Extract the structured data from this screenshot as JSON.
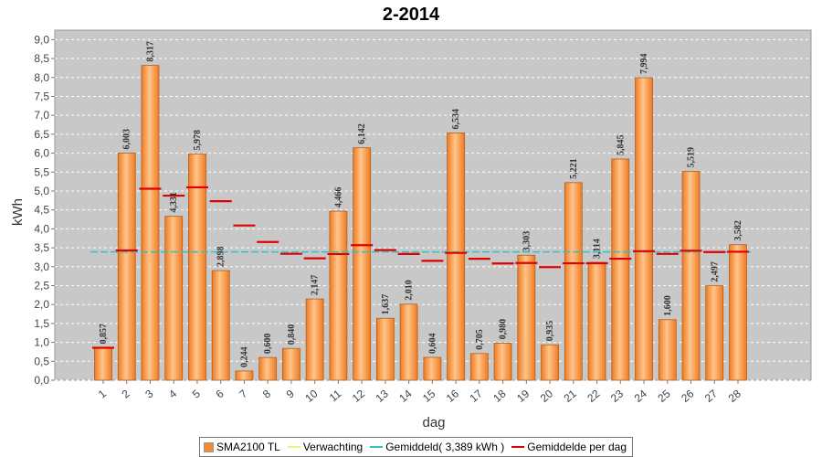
{
  "chart_data": {
    "type": "bar",
    "title": "2-2014",
    "xlabel": "dag",
    "ylabel": "kWh",
    "ylim": [
      0,
      9.25
    ],
    "yticks": [
      "0,0",
      "0,5",
      "1,0",
      "1,5",
      "2,0",
      "2,5",
      "3,0",
      "3,5",
      "4,0",
      "4,5",
      "5,0",
      "5,5",
      "6,0",
      "6,5",
      "7,0",
      "7,5",
      "8,0",
      "8,5",
      "9,0"
    ],
    "categories": [
      "1",
      "2",
      "3",
      "4",
      "5",
      "6",
      "7",
      "8",
      "9",
      "10",
      "11",
      "12",
      "13",
      "14",
      "15",
      "16",
      "17",
      "18",
      "19",
      "20",
      "21",
      "22",
      "23",
      "24",
      "25",
      "26",
      "27",
      "28"
    ],
    "series": [
      {
        "name": "SMA2100 TL",
        "values": [
          0.857,
          6.003,
          8.317,
          4.331,
          5.978,
          2.898,
          0.244,
          0.6,
          0.84,
          2.147,
          4.466,
          6.142,
          1.637,
          2.01,
          0.604,
          6.534,
          0.705,
          0.98,
          3.303,
          0.935,
          5.221,
          3.114,
          5.845,
          7.994,
          1.6,
          5.519,
          2.497,
          3.582
        ],
        "labels": [
          "0,857",
          "6,003",
          "8,317",
          "4,331",
          "5,978",
          "2,898",
          "0,244",
          "0,600",
          "0,840",
          "2,147",
          "4,466",
          "6,142",
          "1,637",
          "2,010",
          "0,604",
          "6,534",
          "0,705",
          "0,980",
          "3,303",
          "0,935",
          "5,221",
          "3,114",
          "5,845",
          "7,994",
          "1,600",
          "5,519",
          "2,497",
          "3,582"
        ],
        "color": "#ff9f4a"
      },
      {
        "name": "Gemiddelde per dag",
        "values": [
          0.857,
          3.43,
          5.059,
          4.877,
          5.097,
          4.73,
          4.089,
          3.653,
          3.341,
          3.222,
          3.335,
          3.569,
          3.438,
          3.336,
          3.154,
          3.365,
          3.209,
          3.086,
          3.097,
          2.989,
          3.09,
          3.091,
          3.211,
          3.41,
          3.338,
          3.422,
          3.388,
          3.395
        ],
        "color": "#e00000"
      }
    ],
    "reference_lines": [
      {
        "name": "Gemiddeld( 3,389 kWh )",
        "value": 3.389,
        "color": "#30c0c8"
      }
    ],
    "legend_position": "bottom",
    "grid": true
  },
  "legend": {
    "items": [
      {
        "label": "SMA2100 TL",
        "color": "#f28a30",
        "kind": "box"
      },
      {
        "label": "Verwachting",
        "color": "#f5f07a",
        "kind": "line"
      },
      {
        "label": "Gemiddeld( 3,389 kWh )",
        "color": "#30c0c8",
        "kind": "line"
      },
      {
        "label": "Gemiddelde per dag",
        "color": "#e00000",
        "kind": "line"
      }
    ]
  }
}
